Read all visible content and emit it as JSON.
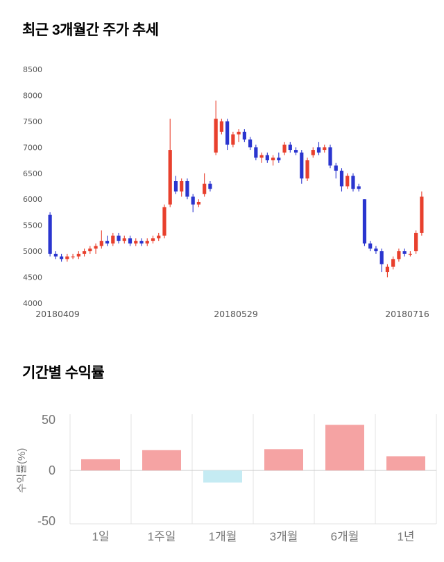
{
  "price_chart": {
    "title": "최근 3개월간 주가 추세"
  },
  "returns_chart": {
    "title": "기간별 수익률",
    "ylabel": "수익률(%)"
  },
  "chart_data": [
    {
      "type": "candlestick",
      "title": "최근 3개월간 주가 추세",
      "ylim": [
        4000,
        8500
      ],
      "yticks": [
        8500,
        8000,
        7500,
        7000,
        6500,
        6000,
        5500,
        5000,
        4500,
        4000
      ],
      "xtick_labels": [
        "20180409",
        "20180529",
        "20180716"
      ],
      "colors": {
        "up": "#e8402d",
        "down": "#2a35cf"
      },
      "ohlc_format": [
        "open",
        "high",
        "low",
        "close"
      ],
      "ohlc": [
        [
          5700,
          5750,
          4900,
          4950
        ],
        [
          4950,
          5000,
          4850,
          4900
        ],
        [
          4900,
          4950,
          4800,
          4850
        ],
        [
          4850,
          4950,
          4800,
          4900
        ],
        [
          4900,
          4950,
          4850,
          4900
        ],
        [
          4900,
          5000,
          4850,
          4950
        ],
        [
          4950,
          5050,
          4900,
          5000
        ],
        [
          5000,
          5100,
          4950,
          5050
        ],
        [
          5050,
          5150,
          4950,
          5100
        ],
        [
          5100,
          5400,
          5050,
          5200
        ],
        [
          5200,
          5300,
          5100,
          5150
        ],
        [
          5150,
          5350,
          5100,
          5300
        ],
        [
          5300,
          5350,
          5150,
          5200
        ],
        [
          5200,
          5300,
          5150,
          5250
        ],
        [
          5250,
          5300,
          5100,
          5150
        ],
        [
          5150,
          5250,
          5100,
          5200
        ],
        [
          5200,
          5250,
          5100,
          5150
        ],
        [
          5150,
          5250,
          5100,
          5200
        ],
        [
          5200,
          5300,
          5150,
          5250
        ],
        [
          5250,
          5350,
          5200,
          5300
        ],
        [
          5300,
          5900,
          5250,
          5850
        ],
        [
          5900,
          7550,
          5850,
          6950
        ],
        [
          6350,
          6450,
          6100,
          6150
        ],
        [
          6150,
          6400,
          6050,
          6350
        ],
        [
          6350,
          6400,
          6000,
          6050
        ],
        [
          6050,
          6100,
          5750,
          5900
        ],
        [
          5900,
          6000,
          5850,
          5950
        ],
        [
          6100,
          6500,
          6050,
          6300
        ],
        [
          6300,
          6350,
          6150,
          6200
        ],
        [
          6900,
          7900,
          6850,
          7550
        ],
        [
          7300,
          7550,
          7250,
          7500
        ],
        [
          7500,
          7550,
          6950,
          7050
        ],
        [
          7050,
          7300,
          7000,
          7250
        ],
        [
          7250,
          7350,
          7100,
          7300
        ],
        [
          7300,
          7350,
          7100,
          7150
        ],
        [
          7150,
          7200,
          6950,
          7000
        ],
        [
          7000,
          7050,
          6750,
          6800
        ],
        [
          6800,
          6900,
          6700,
          6850
        ],
        [
          6850,
          6900,
          6700,
          6750
        ],
        [
          6750,
          6850,
          6650,
          6800
        ],
        [
          6800,
          6900,
          6700,
          6750
        ],
        [
          6900,
          7100,
          6850,
          7050
        ],
        [
          7050,
          7100,
          6900,
          6950
        ],
        [
          6950,
          7000,
          6850,
          6900
        ],
        [
          6900,
          6950,
          6300,
          6400
        ],
        [
          6400,
          6800,
          6350,
          6750
        ],
        [
          6850,
          7000,
          6800,
          6950
        ],
        [
          7000,
          7100,
          6850,
          6900
        ],
        [
          6950,
          7050,
          6900,
          7000
        ],
        [
          7000,
          7050,
          6600,
          6650
        ],
        [
          6650,
          6700,
          6400,
          6550
        ],
        [
          6550,
          6600,
          6150,
          6250
        ],
        [
          6250,
          6500,
          6200,
          6450
        ],
        [
          6450,
          6500,
          6150,
          6200
        ],
        [
          6250,
          6300,
          6150,
          6200
        ],
        [
          6000,
          6000,
          5100,
          5150
        ],
        [
          5150,
          5200,
          5000,
          5050
        ],
        [
          5050,
          5100,
          4950,
          5000
        ],
        [
          5000,
          5050,
          4600,
          4750
        ],
        [
          4600,
          4750,
          4500,
          4700
        ],
        [
          4700,
          4900,
          4650,
          4850
        ],
        [
          4850,
          5050,
          4800,
          5000
        ],
        [
          5000,
          5050,
          4900,
          4950
        ],
        [
          4950,
          5000,
          4900,
          4950
        ],
        [
          5000,
          5400,
          4950,
          5350
        ],
        [
          5350,
          6150,
          5300,
          6050
        ]
      ]
    },
    {
      "type": "bar",
      "title": "기간별 수익률",
      "ylabel": "수익률(%)",
      "categories": [
        "1일",
        "1주일",
        "1개월",
        "3개월",
        "6개월",
        "1년"
      ],
      "values": [
        11,
        20,
        -12,
        21,
        45,
        14
      ],
      "yticks": [
        50,
        0,
        -50
      ],
      "ylim": [
        -55,
        60
      ],
      "grid": "vertical-separators",
      "legend": "none",
      "colors": {
        "positive": "#f5a3a3",
        "negative": "#c5ebf3"
      }
    }
  ]
}
